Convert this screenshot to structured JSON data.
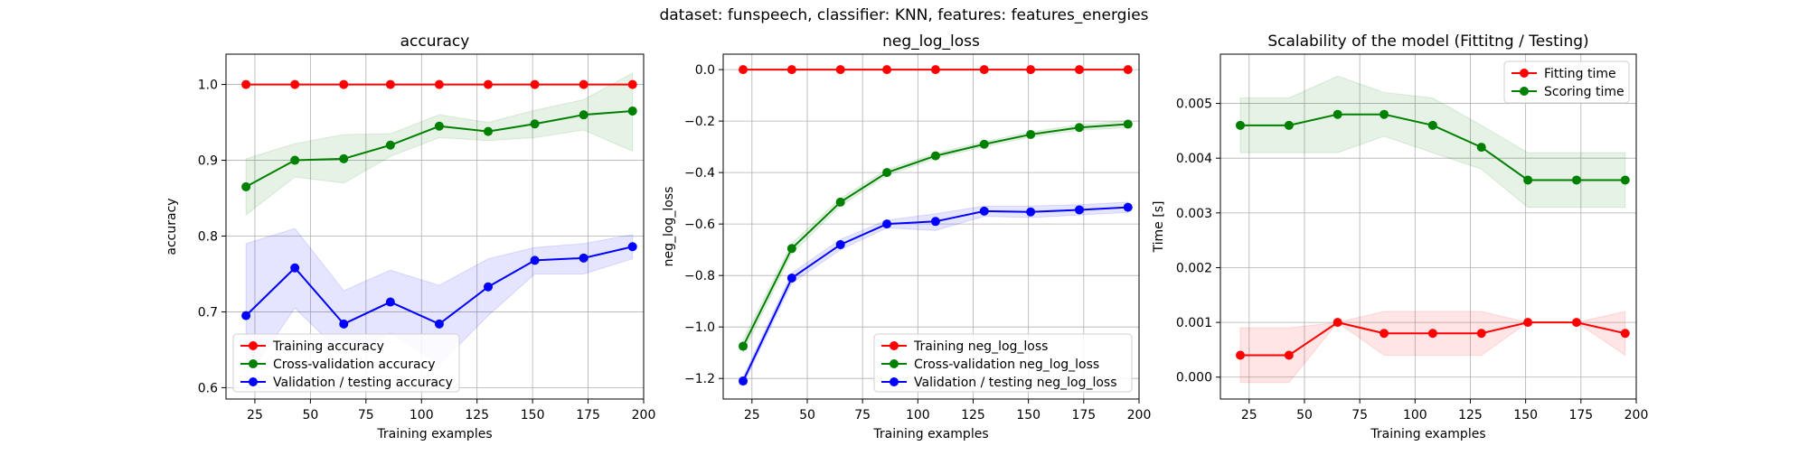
{
  "figure": {
    "suptitle": "dataset: funspeech, classifier: KNN, features: features_energies"
  },
  "chart_data": [
    {
      "type": "line",
      "title": "accuracy",
      "xlabel": "Training examples",
      "ylabel": "accuracy",
      "xlim": [
        12,
        200
      ],
      "ylim": [
        0.585,
        1.04
      ],
      "xticks": [
        25,
        50,
        75,
        100,
        125,
        150,
        175,
        200
      ],
      "yticks": [
        0.6,
        0.7,
        0.8,
        0.9,
        1.0
      ],
      "ytick_labels": [
        "0.6",
        "0.7",
        "0.8",
        "0.9",
        "1.0"
      ],
      "grid": true,
      "legend_position": "lower-left",
      "x": [
        21,
        43,
        65,
        86,
        108,
        130,
        151,
        173,
        195
      ],
      "series": [
        {
          "name": "Training accuracy",
          "color": "#ff0000",
          "values": [
            1.0,
            1.0,
            1.0,
            1.0,
            1.0,
            1.0,
            1.0,
            1.0,
            1.0
          ],
          "band_lower": [
            1.0,
            1.0,
            1.0,
            1.0,
            1.0,
            1.0,
            1.0,
            1.0,
            1.0
          ],
          "band_upper": [
            1.0,
            1.0,
            1.0,
            1.0,
            1.0,
            1.0,
            1.0,
            1.0,
            1.0
          ]
        },
        {
          "name": "Cross-validation accuracy",
          "color": "#008000",
          "values": [
            0.865,
            0.9,
            0.902,
            0.92,
            0.945,
            0.938,
            0.948,
            0.96,
            0.965
          ],
          "band_lower": [
            0.828,
            0.878,
            0.87,
            0.905,
            0.93,
            0.926,
            0.93,
            0.94,
            0.912
          ],
          "band_upper": [
            0.902,
            0.922,
            0.934,
            0.935,
            0.96,
            0.95,
            0.966,
            0.98,
            1.015
          ]
        },
        {
          "name": "Validation / testing accuracy",
          "color": "#0000ff",
          "values": [
            0.695,
            0.758,
            0.684,
            0.713,
            0.684,
            0.733,
            0.768,
            0.771,
            0.786
          ],
          "band_lower": [
            0.61,
            0.705,
            0.642,
            0.672,
            0.63,
            0.695,
            0.75,
            0.75,
            0.77
          ],
          "band_upper": [
            0.79,
            0.81,
            0.728,
            0.755,
            0.735,
            0.77,
            0.785,
            0.79,
            0.802
          ]
        }
      ]
    },
    {
      "type": "line",
      "title": "neg_log_loss",
      "xlabel": "Training examples",
      "ylabel": "neg_log_loss",
      "xlim": [
        12,
        200
      ],
      "ylim": [
        -1.28,
        0.06
      ],
      "xticks": [
        25,
        50,
        75,
        100,
        125,
        150,
        175,
        200
      ],
      "yticks": [
        -1.2,
        -1.0,
        -0.8,
        -0.6,
        -0.4,
        -0.2,
        0.0
      ],
      "ytick_labels": [
        "−1.2",
        "−1.0",
        "−0.8",
        "−0.6",
        "−0.4",
        "−0.2",
        "0.0"
      ],
      "grid": true,
      "legend_position": "lower-right",
      "x": [
        21,
        43,
        65,
        86,
        108,
        130,
        151,
        173,
        195
      ],
      "series": [
        {
          "name": "Training neg_log_loss",
          "color": "#ff0000",
          "values": [
            0.0,
            0.0,
            0.0,
            0.0,
            0.0,
            0.0,
            0.0,
            0.0,
            0.0
          ],
          "band_lower": [
            0.0,
            0.0,
            0.0,
            0.0,
            0.0,
            0.0,
            0.0,
            0.0,
            0.0
          ],
          "band_upper": [
            0.0,
            0.0,
            0.0,
            0.0,
            0.0,
            0.0,
            0.0,
            0.0,
            0.0
          ]
        },
        {
          "name": "Cross-validation neg_log_loss",
          "color": "#008000",
          "values": [
            -1.075,
            -0.695,
            -0.515,
            -0.4,
            -0.335,
            -0.29,
            -0.252,
            -0.225,
            -0.212
          ],
          "band_lower": [
            -1.1,
            -0.715,
            -0.53,
            -0.412,
            -0.345,
            -0.3,
            -0.262,
            -0.236,
            -0.225
          ],
          "band_upper": [
            -1.05,
            -0.675,
            -0.5,
            -0.388,
            -0.325,
            -0.28,
            -0.242,
            -0.214,
            -0.199
          ]
        },
        {
          "name": "Validation / testing neg_log_loss",
          "color": "#0000ff",
          "values": [
            -1.21,
            -0.81,
            -0.68,
            -0.6,
            -0.59,
            -0.55,
            -0.553,
            -0.545,
            -0.535
          ],
          "band_lower": [
            -1.225,
            -0.83,
            -0.7,
            -0.615,
            -0.625,
            -0.57,
            -0.575,
            -0.565,
            -0.555
          ],
          "band_upper": [
            -1.195,
            -0.79,
            -0.66,
            -0.585,
            -0.56,
            -0.53,
            -0.53,
            -0.525,
            -0.515
          ]
        }
      ]
    },
    {
      "type": "line",
      "title": "Scalability of the model (Fittitng / Testing)",
      "xlabel": "Training examples",
      "ylabel": "Time [s]",
      "xlim": [
        12,
        200
      ],
      "ylim": [
        -0.0004,
        0.0059
      ],
      "xticks": [
        25,
        50,
        75,
        100,
        125,
        150,
        175,
        200
      ],
      "yticks": [
        0.0,
        0.001,
        0.002,
        0.003,
        0.004,
        0.005
      ],
      "ytick_labels": [
        "0.000",
        "0.001",
        "0.002",
        "0.003",
        "0.004",
        "0.005"
      ],
      "grid": true,
      "legend_position": "upper-right",
      "x": [
        21,
        43,
        65,
        86,
        108,
        130,
        151,
        173,
        195
      ],
      "series": [
        {
          "name": "Fitting time",
          "color": "#ff0000",
          "values": [
            0.0004,
            0.0004,
            0.001,
            0.0008,
            0.0008,
            0.0008,
            0.001,
            0.001,
            0.0008
          ],
          "band_lower": [
            -0.0001,
            -0.0001,
            0.001,
            0.0004,
            0.0004,
            0.0004,
            0.001,
            0.001,
            0.0004
          ],
          "band_upper": [
            0.0009,
            0.0009,
            0.001,
            0.0012,
            0.0012,
            0.0012,
            0.001,
            0.001,
            0.0012
          ]
        },
        {
          "name": "Scoring time",
          "color": "#008000",
          "values": [
            0.0046,
            0.0046,
            0.0048,
            0.0048,
            0.0046,
            0.0042,
            0.0036,
            0.0036,
            0.0036
          ],
          "band_lower": [
            0.0041,
            0.0041,
            0.0041,
            0.0044,
            0.0041,
            0.0038,
            0.0031,
            0.0031,
            0.0031
          ],
          "band_upper": [
            0.0051,
            0.0051,
            0.0055,
            0.0052,
            0.0051,
            0.0046,
            0.0041,
            0.0041,
            0.0041
          ]
        }
      ]
    }
  ]
}
